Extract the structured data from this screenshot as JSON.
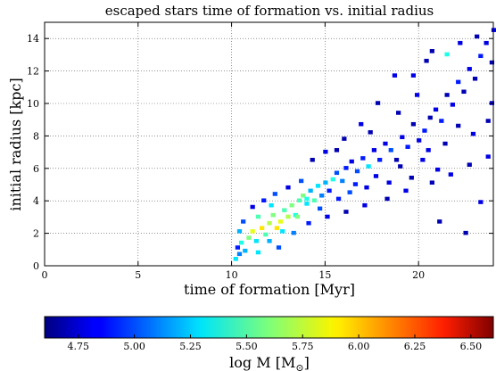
{
  "chart_data": {
    "type": "heatmap",
    "title": "escaped stars time of formation vs. initial radius",
    "xlabel": "time of formation [Myr]",
    "ylabel": "initial radius [kpc]",
    "xlim": [
      0,
      24
    ],
    "ylim": [
      0,
      15
    ],
    "x_ticks": [
      0,
      5,
      10,
      15,
      20
    ],
    "y_ticks": [
      0,
      2,
      4,
      6,
      8,
      10,
      12,
      14
    ],
    "x_tick_labels": [
      "0",
      "5",
      "10",
      "15",
      "20"
    ],
    "y_tick_labels": [
      "0",
      "2",
      "4",
      "6",
      "8",
      "10",
      "12",
      "14"
    ],
    "grid": true,
    "bin_size": {
      "x": 0.25,
      "y": 0.25
    },
    "colorbar": {
      "label": "log M [M",
      "label_sub": "⊙",
      "label_end": "]",
      "range": [
        4.6,
        6.6
      ],
      "ticks": [
        4.75,
        5.0,
        5.25,
        5.5,
        5.75,
        6.0,
        6.25,
        6.5
      ],
      "tick_labels": [
        "4.75",
        "5.00",
        "5.25",
        "5.50",
        "5.75",
        "6.00",
        "6.25",
        "6.50"
      ],
      "colormap": "jet"
    },
    "cells": [
      [
        10.1,
        0.3,
        5.3
      ],
      [
        10.3,
        0.6,
        5.1
      ],
      [
        10.2,
        1.0,
        4.9
      ],
      [
        10.4,
        1.3,
        5.4
      ],
      [
        10.6,
        0.8,
        5.2
      ],
      [
        10.8,
        1.6,
        5.6
      ],
      [
        11.0,
        2.0,
        5.8
      ],
      [
        11.2,
        1.4,
        5.3
      ],
      [
        11.5,
        2.2,
        5.9
      ],
      [
        11.7,
        1.8,
        5.5
      ],
      [
        11.9,
        2.5,
        5.7
      ],
      [
        12.1,
        3.0,
        5.6
      ],
      [
        12.3,
        2.2,
        5.9
      ],
      [
        12.5,
        2.6,
        5.8
      ],
      [
        12.7,
        3.3,
        5.5
      ],
      [
        12.9,
        2.9,
        5.7
      ],
      [
        13.1,
        3.6,
        5.6
      ],
      [
        13.3,
        3.0,
        5.4
      ],
      [
        13.5,
        3.9,
        5.5
      ],
      [
        13.7,
        4.2,
        5.6
      ],
      [
        13.9,
        3.7,
        5.3
      ],
      [
        14.1,
        4.5,
        5.2
      ],
      [
        14.3,
        3.9,
        5.5
      ],
      [
        14.5,
        4.8,
        5.3
      ],
      [
        14.7,
        4.2,
        5.1
      ],
      [
        14.9,
        5.0,
        5.2
      ],
      [
        15.1,
        4.5,
        4.9
      ],
      [
        15.3,
        5.2,
        5.4
      ],
      [
        15.5,
        5.6,
        5.0
      ],
      [
        15.8,
        5.1,
        5.1
      ],
      [
        16.0,
        5.9,
        4.9
      ],
      [
        16.3,
        6.3,
        4.8
      ],
      [
        16.6,
        5.7,
        5.0
      ],
      [
        16.9,
        6.5,
        4.9
      ],
      [
        17.2,
        6.0,
        5.3
      ],
      [
        17.5,
        7.0,
        4.8
      ],
      [
        17.8,
        6.4,
        4.9
      ],
      [
        18.1,
        7.4,
        4.8
      ],
      [
        18.4,
        7.0,
        5.0
      ],
      [
        18.7,
        6.4,
        4.7
      ],
      [
        19.0,
        7.8,
        4.8
      ],
      [
        19.3,
        7.2,
        4.9
      ],
      [
        19.6,
        8.6,
        4.7
      ],
      [
        19.9,
        7.6,
        4.8
      ],
      [
        20.2,
        8.2,
        4.9
      ],
      [
        20.5,
        9.0,
        4.7
      ],
      [
        20.8,
        9.5,
        4.8
      ],
      [
        21.1,
        8.8,
        4.9
      ],
      [
        21.4,
        10.4,
        4.7
      ],
      [
        21.7,
        9.8,
        4.8
      ],
      [
        22.0,
        11.2,
        4.9
      ],
      [
        22.3,
        10.6,
        4.7
      ],
      [
        22.6,
        12.0,
        4.8
      ],
      [
        22.9,
        11.4,
        4.7
      ],
      [
        23.2,
        12.8,
        4.9
      ],
      [
        23.5,
        13.6,
        4.8
      ],
      [
        23.8,
        12.4,
        4.7
      ],
      [
        21.4,
        12.9,
        5.4
      ],
      [
        20.3,
        12.5,
        4.7
      ],
      [
        18.6,
        11.6,
        4.8
      ],
      [
        17.7,
        9.9,
        4.7
      ],
      [
        16.8,
        8.6,
        4.8
      ],
      [
        15.9,
        7.7,
        4.7
      ],
      [
        14.9,
        6.9,
        4.8
      ],
      [
        14.2,
        6.4,
        4.7
      ],
      [
        13.6,
        5.1,
        5.0
      ],
      [
        12.9,
        4.7,
        4.8
      ],
      [
        12.2,
        4.3,
        5.0
      ],
      [
        11.6,
        3.9,
        4.9
      ],
      [
        11.0,
        3.5,
        4.8
      ],
      [
        10.5,
        2.6,
        5.0
      ],
      [
        10.3,
        2.0,
        5.2
      ],
      [
        11.3,
        0.7,
        5.3
      ],
      [
        12.4,
        1.0,
        5.0
      ],
      [
        13.2,
        1.9,
        5.1
      ],
      [
        14.0,
        2.5,
        4.9
      ],
      [
        15.0,
        2.9,
        4.8
      ],
      [
        16.0,
        3.2,
        4.7
      ],
      [
        17.0,
        3.6,
        4.8
      ],
      [
        18.2,
        4.0,
        4.7
      ],
      [
        19.2,
        4.5,
        4.8
      ],
      [
        20.6,
        5.0,
        4.7
      ],
      [
        21.6,
        5.5,
        4.8
      ],
      [
        22.6,
        6.1,
        4.7
      ],
      [
        23.6,
        6.6,
        4.8
      ],
      [
        21.0,
        2.6,
        4.7
      ],
      [
        23.2,
        3.8,
        4.8
      ],
      [
        22.4,
        1.9,
        4.7
      ],
      [
        20.4,
        7.0,
        4.8
      ],
      [
        22.0,
        8.5,
        4.7
      ],
      [
        23.8,
        9.9,
        4.8
      ],
      [
        18.8,
        9.3,
        4.7
      ],
      [
        19.8,
        10.4,
        4.8
      ],
      [
        17.3,
        8.1,
        4.7
      ],
      [
        15.5,
        7.0,
        4.7
      ],
      [
        23.9,
        14.4,
        4.8
      ],
      [
        23.0,
        14.0,
        4.7
      ],
      [
        22.1,
        13.6,
        4.8
      ],
      [
        20.6,
        13.1,
        4.7
      ],
      [
        19.6,
        11.6,
        4.8
      ],
      [
        16.5,
        4.9,
        4.9
      ],
      [
        17.6,
        5.4,
        4.8
      ],
      [
        18.9,
        6.0,
        4.7
      ],
      [
        20.1,
        6.4,
        4.8
      ],
      [
        21.3,
        7.4,
        4.7
      ],
      [
        22.8,
        8.0,
        4.8
      ],
      [
        23.6,
        8.8,
        4.7
      ],
      [
        13.4,
        2.9,
        5.6
      ],
      [
        12.6,
        2.0,
        5.3
      ],
      [
        11.9,
        1.4,
        5.2
      ],
      [
        11.3,
        2.9,
        5.5
      ],
      [
        12.0,
        3.6,
        5.3
      ],
      [
        13.9,
        4.0,
        5.4
      ],
      [
        14.6,
        3.4,
        5.0
      ],
      [
        15.6,
        4.0,
        4.9
      ],
      [
        16.2,
        4.4,
        5.0
      ],
      [
        17.1,
        4.7,
        4.8
      ],
      [
        18.3,
        5.0,
        4.8
      ],
      [
        19.5,
        5.3,
        4.7
      ],
      [
        20.9,
        5.8,
        4.8
      ]
    ]
  }
}
